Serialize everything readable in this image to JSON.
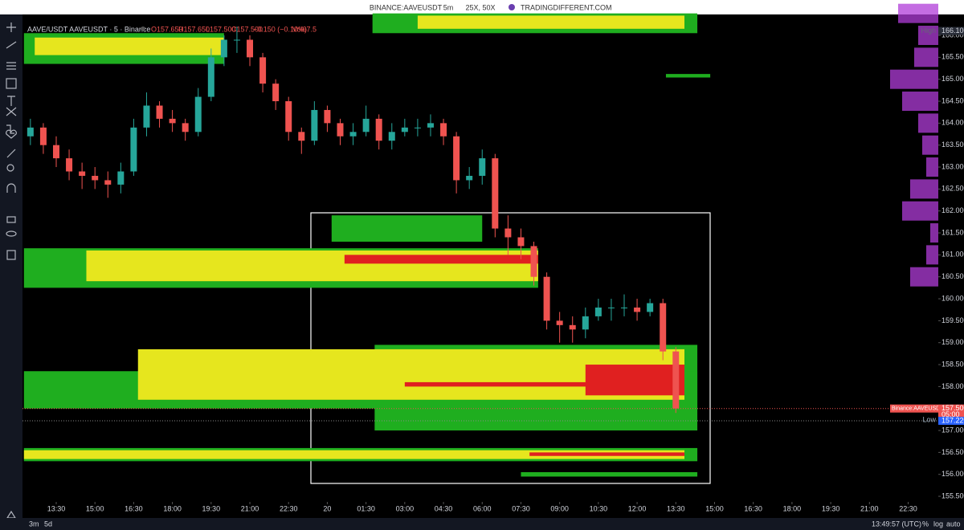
{
  "top_bar": {
    "symbol": "BINANCE:AAVEUSDT",
    "interval": "5m",
    "leverage": "25X, 50X",
    "site": "TRADINGDIFFERENT.COM"
  },
  "legend": {
    "name": "AAVE/USDT AAVEUSDT · 5 · Binance",
    "open": "O157.650",
    "high": "H157.650",
    "low": "L157.500",
    "close": "C157.500",
    "change": "−0.150 (−0.10%)",
    "volume": "Vol67.5"
  },
  "chart_data": {
    "type": "candlestick",
    "up_color": "#26a69a",
    "down_color": "#ef5350",
    "x": [
      750,
      780,
      810,
      840,
      870,
      900,
      930,
      960,
      990,
      1020,
      1050,
      1080,
      1110,
      1140,
      1170,
      1200,
      1230,
      1260,
      1290,
      1320,
      1350,
      1380,
      1410,
      1440,
      1470,
      1500,
      1530,
      1560,
      1590,
      1620,
      1650,
      1680,
      1710,
      1740,
      1770,
      1800,
      1830,
      1860,
      1890,
      1920,
      1950,
      1980,
      2010,
      2040,
      2070,
      2100,
      2130,
      2160,
      2190,
      2220,
      2250
    ],
    "open": [
      163.7,
      163.9,
      163.5,
      163.2,
      162.9,
      162.8,
      162.7,
      162.6,
      162.9,
      163.9,
      164.4,
      164.1,
      164.0,
      163.8,
      164.6,
      165.5,
      165.9,
      165.9,
      165.5,
      164.9,
      164.5,
      163.8,
      163.6,
      164.3,
      164.0,
      163.7,
      163.8,
      164.1,
      163.6,
      163.8,
      163.9,
      163.9,
      164.0,
      163.7,
      162.7,
      162.8,
      163.2,
      161.6,
      161.4,
      161.2,
      160.5,
      159.5,
      159.4,
      159.3,
      159.6,
      159.8,
      159.8,
      159.8,
      159.7,
      159.9,
      158.8
    ],
    "high": [
      164.1,
      164.0,
      163.7,
      163.4,
      163.1,
      163.0,
      162.9,
      163.1,
      164.1,
      164.7,
      164.5,
      164.3,
      164.1,
      164.8,
      165.7,
      166.0,
      166.2,
      166.0,
      165.6,
      165.0,
      164.6,
      163.9,
      164.5,
      164.4,
      164.1,
      164.0,
      164.4,
      164.2,
      164.0,
      164.1,
      164.1,
      164.2,
      164.1,
      163.8,
      163.0,
      163.4,
      163.3,
      161.9,
      161.6,
      161.3,
      160.6,
      159.7,
      159.6,
      159.8,
      160.0,
      160.0,
      160.1,
      160.0,
      160.0,
      160.0,
      158.9
    ],
    "low": [
      163.5,
      163.3,
      163.0,
      162.7,
      162.5,
      162.5,
      162.3,
      162.4,
      162.8,
      163.7,
      163.9,
      163.8,
      163.6,
      163.7,
      164.5,
      165.3,
      165.6,
      165.3,
      164.7,
      164.3,
      163.6,
      163.3,
      163.5,
      163.8,
      163.5,
      163.5,
      163.7,
      163.4,
      163.4,
      163.7,
      163.7,
      163.7,
      163.5,
      162.4,
      162.5,
      162.6,
      161.4,
      161.0,
      160.9,
      160.3,
      159.3,
      159.0,
      159.0,
      159.1,
      159.5,
      159.5,
      159.6,
      159.5,
      159.6,
      158.6,
      157.4
    ],
    "close": [
      163.9,
      163.5,
      163.2,
      162.9,
      162.8,
      162.7,
      162.6,
      162.9,
      163.9,
      164.4,
      164.1,
      164.0,
      163.8,
      164.6,
      165.5,
      165.9,
      165.9,
      165.5,
      164.9,
      164.5,
      163.8,
      163.6,
      164.3,
      164.0,
      163.7,
      163.8,
      164.1,
      163.6,
      163.8,
      163.9,
      163.9,
      164.0,
      163.7,
      162.7,
      162.8,
      163.2,
      161.6,
      161.4,
      161.2,
      160.5,
      159.5,
      159.4,
      159.3,
      159.6,
      159.8,
      159.8,
      159.8,
      159.7,
      159.9,
      158.8,
      157.5
    ],
    "heatmap": [
      {
        "top": 166.05,
        "bottom": 165.35,
        "start": 735,
        "end": 1200,
        "color": "#1fae1f"
      },
      {
        "top": 165.95,
        "bottom": 165.55,
        "start": 760,
        "end": 1200,
        "color": "#e6e61e"
      },
      {
        "top": 166.5,
        "bottom": 166.05,
        "start": 1545,
        "end": 2300,
        "color": "#1fae1f"
      },
      {
        "top": 166.45,
        "bottom": 166.15,
        "start": 1650,
        "end": 2270,
        "color": "#e6e61e"
      },
      {
        "top": 165.12,
        "bottom": 165.04,
        "start": 2227,
        "end": 2330,
        "color": "#1fae1f"
      },
      {
        "top": 161.9,
        "bottom": 161.3,
        "start": 1450,
        "end": 1800,
        "color": "#1fae1f"
      },
      {
        "top": 161.15,
        "bottom": 160.25,
        "start": 735,
        "end": 1930,
        "color": "#1fae1f"
      },
      {
        "top": 161.1,
        "bottom": 160.4,
        "start": 880,
        "end": 1930,
        "color": "#e6e61e"
      },
      {
        "top": 161.0,
        "bottom": 160.8,
        "start": 1480,
        "end": 1930,
        "color": "#e02020"
      },
      {
        "top": 158.95,
        "bottom": 157.0,
        "start": 1550,
        "end": 2300,
        "color": "#1fae1f"
      },
      {
        "top": 158.35,
        "bottom": 157.5,
        "start": 735,
        "end": 2300,
        "color": "#1fae1f"
      },
      {
        "top": 158.85,
        "bottom": 157.7,
        "start": 1000,
        "end": 2270,
        "color": "#e6e61e"
      },
      {
        "top": 158.5,
        "bottom": 157.8,
        "start": 2040,
        "end": 2270,
        "color": "#e02020"
      },
      {
        "top": 158.1,
        "bottom": 158.0,
        "start": 1620,
        "end": 2270,
        "color": "#e02020"
      },
      {
        "top": 156.6,
        "bottom": 156.3,
        "start": 735,
        "end": 2300,
        "color": "#1fae1f"
      },
      {
        "top": 156.55,
        "bottom": 156.35,
        "start": 735,
        "end": 2270,
        "color": "#e6e61e"
      },
      {
        "top": 156.5,
        "bottom": 156.42,
        "start": 1910,
        "end": 2270,
        "color": "#e02020"
      },
      {
        "top": 156.05,
        "bottom": 155.95,
        "start": 1890,
        "end": 2300,
        "color": "#1fae1f"
      }
    ],
    "profile_color": "#b03cd8",
    "profile_levels": [
      166.5,
      166.0,
      165.5,
      165.0,
      164.5,
      164.0,
      163.5,
      163.0,
      162.5,
      162.0,
      161.5,
      161.0,
      160.5
    ],
    "profile_widths": [
      50,
      25,
      30,
      60,
      45,
      25,
      20,
      15,
      35,
      45,
      10,
      15,
      35
    ],
    "xlim": [
      731.6,
      2860
    ],
    "ylim": [
      155.373,
      166.476
    ],
    "xticks": [
      {
        "value": 810,
        "label": "13:30"
      },
      {
        "value": 900,
        "label": "15:00"
      },
      {
        "value": 990,
        "label": "16:30"
      },
      {
        "value": 1080,
        "label": "18:00"
      },
      {
        "value": 1170,
        "label": "19:30"
      },
      {
        "value": 1260,
        "label": "21:00"
      },
      {
        "value": 1350,
        "label": "22:30"
      },
      {
        "value": 1440,
        "label": "20"
      },
      {
        "value": 1530,
        "label": "01:30"
      },
      {
        "value": 1620,
        "label": "03:00"
      },
      {
        "value": 1710,
        "label": "04:30"
      },
      {
        "value": 1800,
        "label": "06:00"
      },
      {
        "value": 1890,
        "label": "07:30"
      },
      {
        "value": 1980,
        "label": "09:00"
      },
      {
        "value": 2070,
        "label": "10:30"
      },
      {
        "value": 2160,
        "label": "12:00"
      },
      {
        "value": 2250,
        "label": "13:30"
      },
      {
        "value": 2340,
        "label": "15:00"
      },
      {
        "value": 2430,
        "label": "16:30"
      },
      {
        "value": 2520,
        "label": "18:00"
      },
      {
        "value": 2610,
        "label": "19:30"
      },
      {
        "value": 2700,
        "label": "21:00"
      },
      {
        "value": 2790,
        "label": "22:30"
      }
    ],
    "yticks": [
      {
        "value": 166,
        "label": "166.000"
      },
      {
        "value": 165.5,
        "label": "165.500"
      },
      {
        "value": 165,
        "label": "165.000"
      },
      {
        "value": 164.5,
        "label": "164.500"
      },
      {
        "value": 164,
        "label": "164.000"
      },
      {
        "value": 163.5,
        "label": "163.500"
      },
      {
        "value": 163,
        "label": "163.000"
      },
      {
        "value": 162.5,
        "label": "162.500"
      },
      {
        "value": 162,
        "label": "162.000"
      },
      {
        "value": 161.5,
        "label": "161.500"
      },
      {
        "value": 161,
        "label": "161.000"
      },
      {
        "value": 160.5,
        "label": "160.500"
      },
      {
        "value": 160,
        "label": "160.000"
      },
      {
        "value": 159.5,
        "label": "159.500"
      },
      {
        "value": 159,
        "label": "159.000"
      },
      {
        "value": 158.5,
        "label": "158.500"
      },
      {
        "value": 158,
        "label": "158.000"
      },
      {
        "value": 157,
        "label": "157.000"
      },
      {
        "value": 156.5,
        "label": "156.500"
      },
      {
        "value": 156,
        "label": "156.000"
      },
      {
        "value": 155.5,
        "label": "155.500"
      }
    ],
    "last_price": {
      "value": 157.5,
      "label": "157.500"
    },
    "exchange_tag": "Binance:AAVEUSDT",
    "countdown": "05:00",
    "low_mark": {
      "value": 157.22,
      "label": "157.220"
    },
    "low_tag": "Low",
    "high_mark": {
      "value": 166.1,
      "label": "166.100"
    },
    "high_tag": "High"
  },
  "bottom_bar": {
    "range_a": "3m",
    "range_b": "5d",
    "clock": "13:49:57 (UTC)",
    "percent": "%",
    "log": "log",
    "auto": "auto"
  }
}
